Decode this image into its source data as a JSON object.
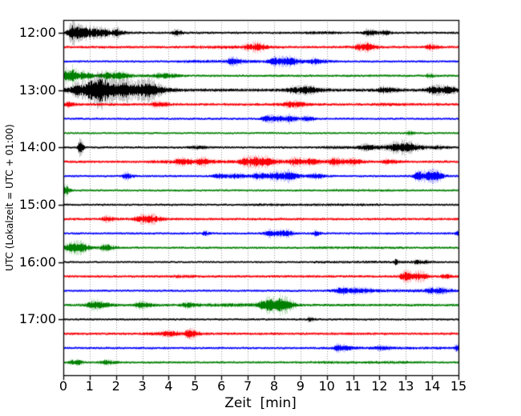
{
  "figure": {
    "background": "#ffffff"
  },
  "chart_data": {
    "type": "line",
    "subtype": "seismogram-helicorder-dayplot",
    "title": "",
    "xlabel": "Zeit  [min]",
    "ylabel": "UTC (Lokalzeit = UTC + 01:00)",
    "xlim": [
      0,
      15
    ],
    "minutes_per_row": 15,
    "grid": "vertical dotted gridline at every minute",
    "grid_color": "#999999",
    "frame_color": "#000000",
    "x_tick_labels": [
      "0",
      "1",
      "2",
      "3",
      "4",
      "5",
      "6",
      "7",
      "8",
      "9",
      "10",
      "11",
      "12",
      "13",
      "14",
      "15"
    ],
    "y_ticks": [
      {
        "row": 0,
        "label": "12:00"
      },
      {
        "row": 4,
        "label": "13:00"
      },
      {
        "row": 8,
        "label": "14:00"
      },
      {
        "row": 12,
        "label": "15:00"
      },
      {
        "row": 16,
        "label": "16:00"
      },
      {
        "row": 20,
        "label": "17:00"
      }
    ],
    "colors": {
      "black": "#000000",
      "red": "#fb0007",
      "blue": "#0000ff",
      "green": "#008000"
    },
    "event_format": "[start_minute, width_minute, amplitude_px_halfheight]",
    "band_format": "[start_minute, end_minute, extra_amplitude_px]",
    "traces": [
      {
        "time": "12:00",
        "color": "black",
        "noise": 1.0,
        "bands": [
          [
            0,
            2.5,
            0.6
          ],
          [
            9.2,
            10.3,
            0.5
          ]
        ],
        "events": [
          [
            0.35,
            0.28,
            6.5
          ],
          [
            0.8,
            0.2,
            3.0
          ],
          [
            1.15,
            0.25,
            2.6
          ],
          [
            1.5,
            0.2,
            2.2
          ],
          [
            1.95,
            0.17,
            2.6
          ],
          [
            4.25,
            0.2,
            1.8
          ],
          [
            11.55,
            0.3,
            2.2
          ],
          [
            12.2,
            0.2,
            1.2
          ]
        ]
      },
      {
        "time": "12:15",
        "color": "red",
        "noise": 1.1,
        "bands": [
          [
            5,
            8,
            0.35
          ],
          [
            10.8,
            11.8,
            0.3
          ]
        ],
        "events": [
          [
            7.0,
            0.3,
            1.6
          ],
          [
            7.35,
            0.25,
            2.0
          ],
          [
            11.2,
            0.22,
            2.2
          ],
          [
            11.55,
            0.22,
            2.4
          ],
          [
            13.9,
            0.25,
            1.8
          ]
        ]
      },
      {
        "time": "12:30",
        "color": "blue",
        "noise": 0.95,
        "bands": [
          [
            4.4,
            10.2,
            0.45
          ]
        ],
        "events": [
          [
            6.35,
            0.3,
            2.2
          ],
          [
            8.05,
            0.4,
            2.8
          ],
          [
            8.55,
            0.3,
            2.0
          ],
          [
            9.5,
            0.25,
            1.7
          ]
        ]
      },
      {
        "time": "12:45",
        "color": "green",
        "noise": 1.0,
        "bands": [
          [
            0,
            4.5,
            0.35
          ]
        ],
        "events": [
          [
            0.1,
            0.18,
            4.6
          ],
          [
            0.32,
            0.2,
            3.8
          ],
          [
            0.75,
            0.22,
            2.6
          ],
          [
            1.6,
            0.3,
            2.2
          ],
          [
            2.05,
            0.3,
            2.0
          ],
          [
            3.7,
            0.4,
            1.5
          ],
          [
            13.85,
            0.15,
            1.5
          ]
        ]
      },
      {
        "time": "13:00",
        "color": "black",
        "noise": 1.4,
        "bands": [
          [
            0,
            4.3,
            1.0
          ]
        ],
        "events": [
          [
            0.5,
            0.35,
            3.2
          ],
          [
            1.1,
            0.45,
            7.5
          ],
          [
            1.45,
            0.3,
            5.5
          ],
          [
            1.9,
            0.3,
            4.0
          ],
          [
            2.35,
            0.3,
            5.0
          ],
          [
            2.95,
            0.35,
            4.5
          ],
          [
            3.3,
            0.3,
            3.0
          ],
          [
            8.8,
            0.5,
            2.0
          ],
          [
            9.3,
            0.3,
            1.8
          ],
          [
            12.1,
            0.35,
            1.8
          ],
          [
            14.0,
            0.4,
            2.6
          ],
          [
            14.55,
            0.3,
            1.8
          ]
        ]
      },
      {
        "time": "13:15",
        "color": "red",
        "noise": 1.15,
        "bands": [
          [
            8.0,
            9.4,
            0.5
          ],
          [
            11.8,
            13.2,
            0.3
          ]
        ],
        "events": [
          [
            0.15,
            0.2,
            1.6
          ],
          [
            3.5,
            0.3,
            2.0
          ],
          [
            8.6,
            0.35,
            1.6
          ]
        ]
      },
      {
        "time": "13:30",
        "color": "blue",
        "noise": 0.95,
        "bands": [],
        "events": [
          [
            7.7,
            0.28,
            2.8
          ],
          [
            8.25,
            0.35,
            1.7
          ],
          [
            8.55,
            0.25,
            1.5
          ],
          [
            9.2,
            0.2,
            1.7
          ]
        ]
      },
      {
        "time": "13:45",
        "color": "green",
        "noise": 0.85,
        "bands": [],
        "events": [
          [
            13.1,
            0.15,
            1.3
          ]
        ]
      },
      {
        "time": "14:00",
        "color": "black",
        "noise": 0.95,
        "bands": [
          [
            9.8,
            13.9,
            0.55
          ]
        ],
        "events": [
          [
            0.6,
            0.1,
            6.0
          ],
          [
            5.0,
            0.4,
            0.9
          ],
          [
            11.45,
            0.4,
            1.4
          ],
          [
            12.55,
            0.45,
            2.8
          ],
          [
            13.0,
            0.35,
            2.2
          ],
          [
            14.2,
            0.3,
            1.0
          ]
        ]
      },
      {
        "time": "14:15",
        "color": "red",
        "noise": 1.1,
        "bands": [
          [
            3.3,
            11.6,
            0.5
          ]
        ],
        "events": [
          [
            4.45,
            0.35,
            1.8
          ],
          [
            5.2,
            0.25,
            2.2
          ],
          [
            6.9,
            0.35,
            2.4
          ],
          [
            7.3,
            0.3,
            2.4
          ],
          [
            7.7,
            0.3,
            2.0
          ],
          [
            8.75,
            0.3,
            2.0
          ],
          [
            9.35,
            0.25,
            1.7
          ],
          [
            10.25,
            0.3,
            2.0
          ],
          [
            10.95,
            0.25,
            1.7
          ],
          [
            12.3,
            0.3,
            1.5
          ]
        ]
      },
      {
        "time": "14:30",
        "color": "blue",
        "noise": 0.95,
        "bands": [
          [
            5.5,
            10,
            0.35
          ]
        ],
        "events": [
          [
            2.35,
            0.18,
            2.6
          ],
          [
            5.85,
            0.3,
            1.4
          ],
          [
            6.5,
            0.25,
            1.4
          ],
          [
            7.35,
            0.3,
            2.0
          ],
          [
            8.05,
            0.35,
            3.0
          ],
          [
            8.55,
            0.25,
            2.2
          ],
          [
            9.5,
            0.25,
            1.7
          ],
          [
            13.45,
            0.3,
            3.6
          ],
          [
            13.9,
            0.3,
            3.2
          ],
          [
            14.15,
            0.2,
            1.8
          ]
        ]
      },
      {
        "time": "14:45",
        "color": "green",
        "noise": 0.9,
        "bands": [
          [
            10,
            13,
            0.2
          ]
        ],
        "events": [
          [
            0.07,
            0.12,
            4.0
          ]
        ]
      },
      {
        "time": "15:00",
        "color": "black",
        "noise": 0.9,
        "bands": [
          [
            7,
            12,
            0.25
          ]
        ],
        "events": []
      },
      {
        "time": "15:15",
        "color": "red",
        "noise": 1.1,
        "bands": [],
        "events": [
          [
            1.6,
            0.3,
            1.5
          ],
          [
            2.95,
            0.45,
            2.5
          ],
          [
            3.3,
            0.25,
            1.6
          ]
        ]
      },
      {
        "time": "15:30",
        "color": "blue",
        "noise": 0.95,
        "bands": [],
        "events": [
          [
            5.35,
            0.12,
            1.6
          ],
          [
            7.85,
            0.35,
            2.6
          ],
          [
            8.4,
            0.25,
            1.8
          ],
          [
            9.55,
            0.15,
            1.6
          ],
          [
            14.95,
            0.12,
            2.4
          ]
        ]
      },
      {
        "time": "15:45",
        "color": "green",
        "noise": 0.95,
        "bands": [
          [
            0,
            1.9,
            0.4
          ],
          [
            9.5,
            13,
            0.2
          ]
        ],
        "events": [
          [
            0.15,
            0.2,
            2.8
          ],
          [
            0.42,
            0.25,
            3.0
          ],
          [
            0.7,
            0.2,
            2.0
          ],
          [
            1.55,
            0.25,
            2.2
          ]
        ]
      },
      {
        "time": "16:00",
        "color": "black",
        "noise": 0.85,
        "bands": [
          [
            9.5,
            14.2,
            0.3
          ]
        ],
        "events": [
          [
            12.6,
            0.08,
            2.2
          ],
          [
            13.45,
            0.25,
            1.3
          ]
        ]
      },
      {
        "time": "16:15",
        "color": "red",
        "noise": 1.1,
        "bands": [
          [
            4.1,
            5.1,
            0.4
          ]
        ],
        "events": [
          [
            12.95,
            0.3,
            3.6
          ],
          [
            13.5,
            0.25,
            2.6
          ],
          [
            14.45,
            0.18,
            1.7
          ]
        ]
      },
      {
        "time": "16:30",
        "color": "blue",
        "noise": 0.95,
        "bands": [
          [
            10.1,
            15,
            0.5
          ]
        ],
        "events": [
          [
            10.5,
            0.3,
            2.0
          ],
          [
            11.15,
            0.4,
            1.3
          ],
          [
            13.9,
            0.3,
            1.5
          ],
          [
            14.3,
            0.25,
            1.3
          ]
        ]
      },
      {
        "time": "16:45",
        "color": "green",
        "noise": 1.1,
        "bands": [
          [
            5.3,
            8.8,
            0.6
          ]
        ],
        "events": [
          [
            1.15,
            0.4,
            3.2
          ],
          [
            2.9,
            0.35,
            2.0
          ],
          [
            4.65,
            0.3,
            1.8
          ],
          [
            7.6,
            0.35,
            3.2
          ],
          [
            7.95,
            0.4,
            3.8
          ],
          [
            8.3,
            0.3,
            2.4
          ]
        ]
      },
      {
        "time": "17:00",
        "color": "black",
        "noise": 0.9,
        "bands": [],
        "events": [
          [
            9.3,
            0.15,
            1.4
          ]
        ]
      },
      {
        "time": "17:15",
        "color": "red",
        "noise": 1.1,
        "bands": [
          [
            3.0,
            4.5,
            0.5
          ]
        ],
        "events": [
          [
            3.9,
            0.3,
            1.6
          ],
          [
            4.75,
            0.25,
            3.6
          ]
        ]
      },
      {
        "time": "17:30",
        "color": "blue",
        "noise": 0.95,
        "bands": [
          [
            10,
            15,
            0.3
          ]
        ],
        "events": [
          [
            10.45,
            0.3,
            2.2
          ],
          [
            12.0,
            0.25,
            1.2
          ],
          [
            14.9,
            0.15,
            2.2
          ]
        ]
      },
      {
        "time": "17:45",
        "color": "green",
        "noise": 0.95,
        "bands": [
          [
            9.5,
            13.5,
            0.3
          ]
        ],
        "events": [
          [
            0.28,
            0.12,
            2.2
          ],
          [
            0.55,
            0.12,
            2.4
          ],
          [
            1.55,
            0.3,
            1.6
          ]
        ]
      }
    ]
  }
}
